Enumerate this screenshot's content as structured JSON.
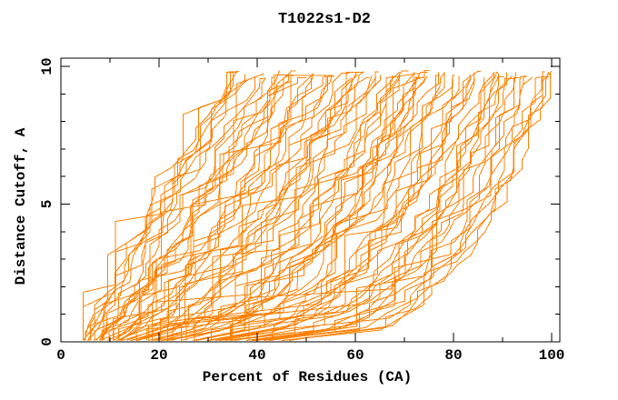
{
  "chart_data": {
    "type": "line",
    "title": "T1022s1-D2",
    "xlabel": "Percent of Residues (CA)",
    "ylabel": "Distance Cutoff, A",
    "xlim": [
      0,
      100
    ],
    "ylim": [
      0,
      10
    ],
    "x_major_ticks": [
      0,
      20,
      40,
      60,
      80,
      100
    ],
    "x_minor_tick_step": 10,
    "y_major_ticks": [
      0,
      5,
      10
    ],
    "y_minor_tick_step": 1,
    "grid": false,
    "legend": null,
    "frame": "full-box-with-mirrored-inward-ticks",
    "line_color": "#ff8000",
    "axis_color": "#000000",
    "background_color": "#ffffff",
    "n_curves": 85,
    "series_note": "approx. 85 overlapping per-model GDT curves (one jagged monotone polyline per predicted model); individual curve values are unresolvable due to heavy overplotting; dense solid band at y<1 between x=10 and x=60",
    "envelope_left": [
      [
        6,
        0
      ],
      [
        8,
        1
      ],
      [
        14,
        3.2
      ],
      [
        20,
        5.1
      ],
      [
        28,
        6.9
      ],
      [
        35,
        9.7
      ]
    ],
    "envelope_right": [
      [
        45,
        0.2
      ],
      [
        60,
        0.4
      ],
      [
        73,
        1.6
      ],
      [
        80,
        3.2
      ],
      [
        91,
        6.0
      ],
      [
        100,
        9.7
      ]
    ],
    "curve_top_y": 9.8,
    "synth": {
      "seed": 10222,
      "y_max": 9.8,
      "x_start_range": [
        5,
        45
      ],
      "x_top_range": [
        33,
        100
      ],
      "exponent_range": [
        0.95,
        2.95
      ],
      "y_step_min": 0.26,
      "y_step_rand": 0.3,
      "stall_prob": 0.34,
      "x_jitter": 3.2
    }
  }
}
